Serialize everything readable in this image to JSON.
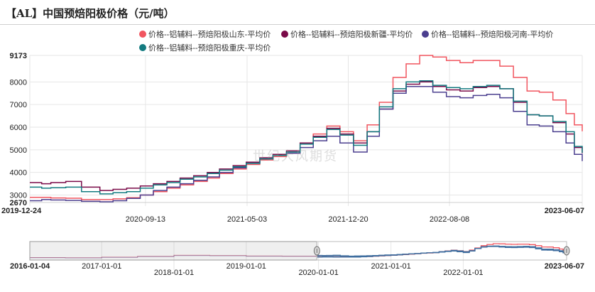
{
  "chart_title": "【AL】中国预焙阳极价格（元/吨）",
  "watermark": "世纪大风期货",
  "colors": {
    "shandong": "#f1555f",
    "xinjiang": "#7a0a48",
    "henan": "#4b3f8f",
    "chongqing": "#137b80",
    "grid": "#e6e6e6",
    "navigator_series": "#3f6e9f"
  },
  "chart_data": {
    "type": "line",
    "x_tick_labels": [
      "2019-12-24",
      "2020-09-13",
      "2021-05-03",
      "2021-12-20",
      "2022-08-08",
      "2023-06-07"
    ],
    "y_tick_labels": [
      "2670",
      "3000",
      "4000",
      "5000",
      "6000",
      "7000",
      "8000",
      "9173"
    ],
    "ylim": [
      2670,
      9173
    ],
    "xlim": [
      "2019-12-24",
      "2023-06-07"
    ],
    "navigator": {
      "tick_labels": [
        "2016-01-04",
        "2017-01-01",
        "2018-01-01",
        "2019-01-01",
        "2020-01-01",
        "2021-01-01",
        "2022-01-01",
        "2023-06-07"
      ],
      "range": [
        "2016-01-04",
        "2023-06-07"
      ],
      "selected_start": "2019-12-24",
      "selected_end": "2023-06-07"
    },
    "series": [
      {
        "name": "价格--铝辅料--预焙阳极山东-平均价",
        "color_key": "shandong",
        "points": [
          [
            "2019-12-24",
            2900
          ],
          [
            "2020-01-20",
            2900
          ],
          [
            "2020-02-10",
            2870
          ],
          [
            "2020-03-15",
            2860
          ],
          [
            "2020-04-20",
            2800
          ],
          [
            "2020-06-01",
            2800
          ],
          [
            "2020-07-01",
            2830
          ],
          [
            "2020-08-01",
            2880
          ],
          [
            "2020-09-01",
            3000
          ],
          [
            "2020-10-01",
            3150
          ],
          [
            "2020-11-01",
            3300
          ],
          [
            "2020-12-01",
            3450
          ],
          [
            "2021-01-01",
            3600
          ],
          [
            "2021-02-01",
            3750
          ],
          [
            "2021-03-01",
            3950
          ],
          [
            "2021-04-01",
            4150
          ],
          [
            "2021-05-01",
            4350
          ],
          [
            "2021-06-01",
            4550
          ],
          [
            "2021-07-01",
            4700
          ],
          [
            "2021-08-01",
            4850
          ],
          [
            "2021-09-01",
            5300
          ],
          [
            "2021-10-01",
            5700
          ],
          [
            "2021-11-01",
            6050
          ],
          [
            "2021-12-01",
            5800
          ],
          [
            "2022-01-01",
            5400
          ],
          [
            "2022-02-01",
            6100
          ],
          [
            "2022-03-01",
            7100
          ],
          [
            "2022-04-01",
            8200
          ],
          [
            "2022-05-01",
            8800
          ],
          [
            "2022-06-01",
            9173
          ],
          [
            "2022-07-01",
            9100
          ],
          [
            "2022-08-01",
            8950
          ],
          [
            "2022-09-01",
            8850
          ],
          [
            "2022-10-01",
            8950
          ],
          [
            "2022-11-01",
            8950
          ],
          [
            "2022-12-01",
            8700
          ],
          [
            "2023-01-01",
            8200
          ],
          [
            "2023-02-01",
            7600
          ],
          [
            "2023-03-01",
            7550
          ],
          [
            "2023-04-01",
            7200
          ],
          [
            "2023-05-01",
            6600
          ],
          [
            "2023-05-20",
            6100
          ],
          [
            "2023-06-07",
            5820
          ]
        ]
      },
      {
        "name": "价格--铝辅料--预焙阳极新疆-平均价",
        "color_key": "xinjiang",
        "points": [
          [
            "2019-12-24",
            3550
          ],
          [
            "2020-01-20",
            3500
          ],
          [
            "2020-02-10",
            3550
          ],
          [
            "2020-03-15",
            3600
          ],
          [
            "2020-04-20",
            3350
          ],
          [
            "2020-06-01",
            3200
          ],
          [
            "2020-07-01",
            3250
          ],
          [
            "2020-08-01",
            3300
          ],
          [
            "2020-09-01",
            3400
          ],
          [
            "2020-10-01",
            3500
          ],
          [
            "2020-11-01",
            3600
          ],
          [
            "2020-12-01",
            3750
          ],
          [
            "2021-01-01",
            3850
          ],
          [
            "2021-02-01",
            4000
          ],
          [
            "2021-03-01",
            4150
          ],
          [
            "2021-04-01",
            4300
          ],
          [
            "2021-05-01",
            4450
          ],
          [
            "2021-06-01",
            4650
          ],
          [
            "2021-07-01",
            4800
          ],
          [
            "2021-08-01",
            4950
          ],
          [
            "2021-09-01",
            5300
          ],
          [
            "2021-10-01",
            5600
          ],
          [
            "2021-11-01",
            5950
          ],
          [
            "2021-12-01",
            5700
          ],
          [
            "2022-01-01",
            5300
          ],
          [
            "2022-02-01",
            5800
          ],
          [
            "2022-03-01",
            6800
          ],
          [
            "2022-04-01",
            7600
          ],
          [
            "2022-05-01",
            7900
          ],
          [
            "2022-06-01",
            8000
          ],
          [
            "2022-07-01",
            7800
          ],
          [
            "2022-08-01",
            7650
          ],
          [
            "2022-09-01",
            7600
          ],
          [
            "2022-10-01",
            7750
          ],
          [
            "2022-11-01",
            7800
          ],
          [
            "2022-12-01",
            7700
          ],
          [
            "2023-01-01",
            7100
          ],
          [
            "2023-02-01",
            6550
          ],
          [
            "2023-03-01",
            6500
          ],
          [
            "2023-04-01",
            6200
          ],
          [
            "2023-05-01",
            5700
          ],
          [
            "2023-05-20",
            5100
          ],
          [
            "2023-06-07",
            4850
          ]
        ]
      },
      {
        "name": "价格--铝辅料--预焙阳极河南-平均价",
        "color_key": "henan",
        "points": [
          [
            "2019-12-24",
            2750
          ],
          [
            "2020-01-20",
            2800
          ],
          [
            "2020-02-10",
            2780
          ],
          [
            "2020-03-15",
            2760
          ],
          [
            "2020-04-20",
            2720
          ],
          [
            "2020-06-01",
            2700
          ],
          [
            "2020-07-01",
            2750
          ],
          [
            "2020-08-01",
            2850
          ],
          [
            "2020-09-01",
            3000
          ],
          [
            "2020-10-01",
            3200
          ],
          [
            "2020-11-01",
            3350
          ],
          [
            "2020-12-01",
            3500
          ],
          [
            "2021-01-01",
            3650
          ],
          [
            "2021-02-01",
            3800
          ],
          [
            "2021-03-01",
            4000
          ],
          [
            "2021-04-01",
            4200
          ],
          [
            "2021-05-01",
            4400
          ],
          [
            "2021-06-01",
            4600
          ],
          [
            "2021-07-01",
            4750
          ],
          [
            "2021-08-01",
            4850
          ],
          [
            "2021-09-01",
            5100
          ],
          [
            "2021-10-01",
            5400
          ],
          [
            "2021-11-01",
            5600
          ],
          [
            "2021-12-01",
            5300
          ],
          [
            "2022-01-01",
            4900
          ],
          [
            "2022-02-01",
            5600
          ],
          [
            "2022-03-01",
            6800
          ],
          [
            "2022-04-01",
            7500
          ],
          [
            "2022-05-01",
            7800
          ],
          [
            "2022-06-01",
            7800
          ],
          [
            "2022-07-01",
            7550
          ],
          [
            "2022-08-01",
            7350
          ],
          [
            "2022-09-01",
            7300
          ],
          [
            "2022-10-01",
            7400
          ],
          [
            "2022-11-01",
            7450
          ],
          [
            "2022-12-01",
            7300
          ],
          [
            "2023-01-01",
            6700
          ],
          [
            "2023-02-01",
            6100
          ],
          [
            "2023-03-01",
            6050
          ],
          [
            "2023-04-01",
            5800
          ],
          [
            "2023-05-01",
            5300
          ],
          [
            "2023-05-20",
            4800
          ],
          [
            "2023-06-07",
            4500
          ]
        ]
      },
      {
        "name": "价格--铝辅料--预焙阳极重庆-平均价",
        "color_key": "chongqing",
        "points": [
          [
            "2019-12-24",
            3350
          ],
          [
            "2020-01-20",
            3300
          ],
          [
            "2020-02-10",
            3320
          ],
          [
            "2020-03-15",
            3350
          ],
          [
            "2020-04-20",
            3150
          ],
          [
            "2020-06-01",
            3050
          ],
          [
            "2020-07-01",
            3100
          ],
          [
            "2020-08-01",
            3150
          ],
          [
            "2020-09-01",
            3300
          ],
          [
            "2020-10-01",
            3450
          ],
          [
            "2020-11-01",
            3550
          ],
          [
            "2020-12-01",
            3700
          ],
          [
            "2021-01-01",
            3800
          ],
          [
            "2021-02-01",
            3950
          ],
          [
            "2021-03-01",
            4100
          ],
          [
            "2021-04-01",
            4250
          ],
          [
            "2021-05-01",
            4400
          ],
          [
            "2021-06-01",
            4600
          ],
          [
            "2021-07-01",
            4750
          ],
          [
            "2021-08-01",
            4900
          ],
          [
            "2021-09-01",
            5250
          ],
          [
            "2021-10-01",
            5550
          ],
          [
            "2021-11-01",
            5900
          ],
          [
            "2021-12-01",
            5650
          ],
          [
            "2022-01-01",
            5200
          ],
          [
            "2022-02-01",
            5800
          ],
          [
            "2022-03-01",
            6900
          ],
          [
            "2022-04-01",
            7700
          ],
          [
            "2022-05-01",
            8000
          ],
          [
            "2022-06-01",
            8050
          ],
          [
            "2022-07-01",
            7850
          ],
          [
            "2022-08-01",
            7750
          ],
          [
            "2022-09-01",
            7700
          ],
          [
            "2022-10-01",
            7800
          ],
          [
            "2022-11-01",
            7850
          ],
          [
            "2022-12-01",
            7700
          ],
          [
            "2023-01-01",
            7150
          ],
          [
            "2023-02-01",
            6550
          ],
          [
            "2023-03-01",
            6500
          ],
          [
            "2023-04-01",
            6250
          ],
          [
            "2023-05-01",
            5800
          ],
          [
            "2023-05-20",
            5150
          ],
          [
            "2023-06-07",
            4870
          ]
        ]
      }
    ]
  }
}
